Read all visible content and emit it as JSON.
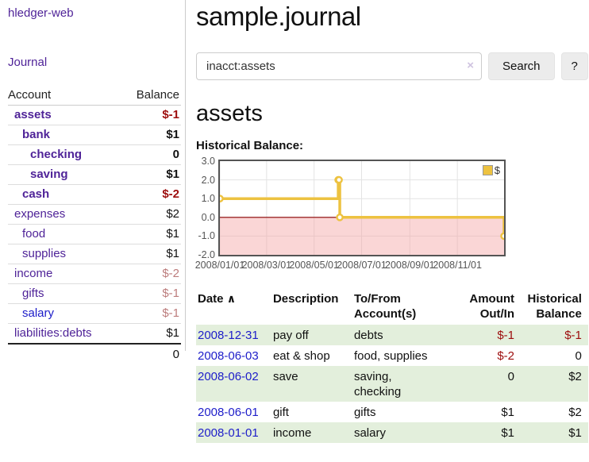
{
  "brand": "hledger-web",
  "nav": {
    "journal": "Journal"
  },
  "sidebar": {
    "account_header": "Account",
    "balance_header": "Balance",
    "accounts": [
      {
        "name": "assets",
        "balance": "$-1",
        "indent": 0,
        "bold": true
      },
      {
        "name": "bank",
        "balance": "$1",
        "indent": 1,
        "bold": true
      },
      {
        "name": "checking",
        "balance": "0",
        "indent": 2,
        "bold": true
      },
      {
        "name": "saving",
        "balance": "$1",
        "indent": 2,
        "bold": true
      },
      {
        "name": "cash",
        "balance": "$-2",
        "indent": 1,
        "bold": true
      },
      {
        "name": "expenses",
        "balance": "$2",
        "indent": 0,
        "bold": false
      },
      {
        "name": "food",
        "balance": "$1",
        "indent": 1,
        "bold": false
      },
      {
        "name": "supplies",
        "balance": "$1",
        "indent": 1,
        "bold": false
      },
      {
        "name": "income",
        "balance": "$-2",
        "indent": 0,
        "bold": false
      },
      {
        "name": "gifts",
        "balance": "$-1",
        "indent": 1,
        "bold": false
      },
      {
        "name": "salary",
        "balance": "$-1",
        "indent": 1,
        "bold": false,
        "unvisited": true
      },
      {
        "name": "liabilities:debts",
        "balance": "$1",
        "indent": 0,
        "bold": false
      }
    ],
    "total": "0"
  },
  "main": {
    "title": "sample.journal",
    "search": {
      "value": "inacct:assets",
      "clear_icon": "×",
      "search_button": "Search",
      "help_button": "?"
    },
    "account_heading": "assets",
    "chart_title": "Historical Balance:"
  },
  "chart_data": {
    "type": "line",
    "style": "step",
    "title": "Historical Balance",
    "x_range": [
      "2008-01-01",
      "2008-12-31"
    ],
    "ylim": [
      -2,
      3
    ],
    "y_ticks": [
      3,
      2,
      1,
      0,
      -1,
      -2
    ],
    "x_ticks": [
      {
        "label": "2008/01/01",
        "date": "2008-01-01"
      },
      {
        "label": "2008/03/01",
        "date": "2008-03-01"
      },
      {
        "label": "2008/05/01",
        "date": "2008-05-01"
      },
      {
        "label": "2008/07/01",
        "date": "2008-07-01"
      },
      {
        "label": "2008/09/01",
        "date": "2008-09-01"
      },
      {
        "label": "2008/11/01",
        "date": "2008-11-01"
      }
    ],
    "series": [
      {
        "name": "$",
        "points": [
          [
            "2008-01-01",
            1
          ],
          [
            "2008-06-01",
            2
          ],
          [
            "2008-06-02",
            2
          ],
          [
            "2008-06-03",
            0
          ],
          [
            "2008-12-31",
            -1
          ]
        ]
      }
    ],
    "legend": {
      "label": "$",
      "position": "top-right"
    },
    "colors": {
      "series": "#edc240",
      "negative_fill": "rgba(245,165,165,0.45)",
      "zero_line": "#8b0000",
      "grid": "#e3e3e3",
      "border": "#545454"
    }
  },
  "register": {
    "headers": {
      "date": "Date",
      "sort_indicator": "∧",
      "description": "Description",
      "accounts": "To/From Account(s)",
      "amount": "Amount Out/In",
      "balance": "Historical Balance"
    },
    "rows": [
      {
        "date": "2008-12-31",
        "description": "pay off",
        "accounts": [
          "debts"
        ],
        "amount": "$-1",
        "balance": "$-1"
      },
      {
        "date": "2008-06-03",
        "description": "eat & shop",
        "accounts": [
          "food, supplies"
        ],
        "amount": "$-2",
        "balance": "0"
      },
      {
        "date": "2008-06-02",
        "description": "save",
        "accounts": [
          "saving,",
          "checking"
        ],
        "amount": "0",
        "balance": "$2"
      },
      {
        "date": "2008-06-01",
        "description": "gift",
        "accounts": [
          "gifts"
        ],
        "amount": "$1",
        "balance": "$2"
      },
      {
        "date": "2008-01-01",
        "description": "income",
        "accounts": [
          "salary"
        ],
        "amount": "$1",
        "balance": "$1"
      }
    ]
  }
}
